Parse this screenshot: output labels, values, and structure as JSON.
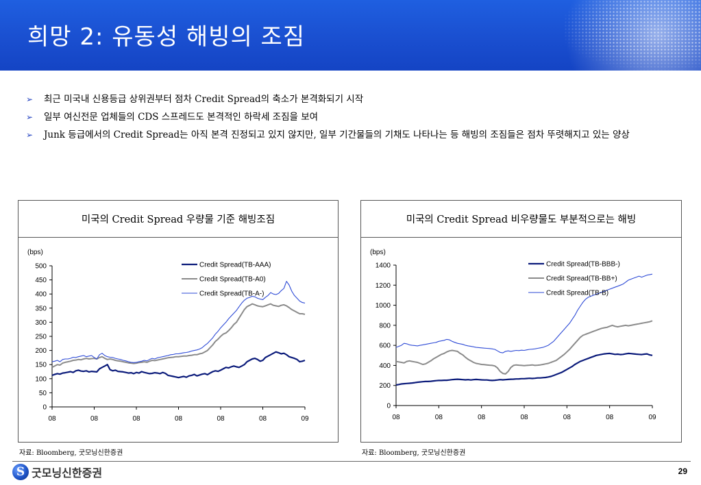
{
  "header": {
    "title": "희망 2: 유동성 해빙의 조짐"
  },
  "bullets": [
    "최근 미국내 신용등급 상위권부터 점차 Credit Spread의 축소가 본격화되기 시작",
    "일부 여신전문 업체들의 CDS 스프레드도 본격적인 하락세 조짐을 보여",
    "Junk 등급에서의 Credit Spread는 아직 본격 진정되고 있지 않지만, 일부 기간물들의 기채도 나타나는 등 해빙의 조짐들은 점차 뚜렷해지고 있는 양상"
  ],
  "bullet_marker": "➢",
  "panels": {
    "left": {
      "title": "미국의 Credit Spread 우량물 기준 해빙조짐",
      "source": "자료: Bloomberg, 굿모닝신한증권"
    },
    "right": {
      "title": "미국의 Credit Spread 비우량물도 부분적으로는 해빙",
      "source": "자료: Bloomberg, 굿모닝신한증권"
    }
  },
  "footer": {
    "logo_mark": "S",
    "logo_name": "굿모닝신한증권",
    "page_number": "29"
  },
  "chart_data": [
    {
      "type": "line",
      "title": "미국의 Credit Spread 우량물 기준 해빙조짐",
      "ylabel": "(bps)",
      "ylim": [
        0,
        500
      ],
      "yticks": [
        0,
        50,
        100,
        150,
        200,
        250,
        300,
        350,
        400,
        450,
        500
      ],
      "xtick_labels": [
        "08",
        "08",
        "08",
        "08",
        "08",
        "08",
        "09"
      ],
      "x_domain": [
        0,
        96
      ],
      "x_tick_positions": [
        0,
        16,
        32,
        48,
        64,
        80,
        96
      ],
      "legend_position": "top-right",
      "series": [
        {
          "name": "Credit Spread(TB-AAA)",
          "color": "#0a1a7a",
          "width": 2.2,
          "dash": "",
          "values": [
            112,
            115,
            118,
            116,
            120,
            121,
            123,
            125,
            122,
            128,
            130,
            127,
            126,
            128,
            124,
            126,
            125,
            124,
            135,
            140,
            145,
            150,
            132,
            128,
            130,
            126,
            125,
            124,
            122,
            120,
            121,
            118,
            122,
            120,
            125,
            122,
            120,
            118,
            119,
            121,
            120,
            118,
            122,
            119,
            112,
            110,
            108,
            106,
            104,
            106,
            108,
            105,
            110,
            112,
            115,
            110,
            113,
            116,
            118,
            114,
            120,
            125,
            128,
            126,
            130,
            135,
            140,
            138,
            142,
            145,
            142,
            140,
            145,
            150,
            160,
            165,
            170,
            172,
            168,
            162,
            165,
            175,
            180,
            185,
            190,
            195,
            192,
            188,
            190,
            185,
            178,
            175,
            172,
            168,
            160,
            162,
            165
          ]
        },
        {
          "name": "Credit Spread(TB-A0)",
          "color": "#8a8a8a",
          "width": 2,
          "dash": "",
          "values": [
            140,
            145,
            150,
            148,
            155,
            158,
            160,
            162,
            165,
            166,
            168,
            167,
            170,
            172,
            170,
            171,
            172,
            170,
            175,
            178,
            172,
            168,
            170,
            168,
            165,
            163,
            162,
            160,
            158,
            156,
            155,
            154,
            155,
            157,
            158,
            160,
            158,
            162,
            165,
            164,
            166,
            168,
            170,
            172,
            174,
            175,
            176,
            178,
            178,
            179,
            180,
            180,
            182,
            183,
            185,
            185,
            188,
            190,
            195,
            200,
            210,
            220,
            232,
            240,
            250,
            258,
            262,
            270,
            280,
            292,
            300,
            315,
            330,
            345,
            355,
            360,
            365,
            362,
            358,
            356,
            355,
            358,
            362,
            365,
            360,
            358,
            356,
            360,
            362,
            358,
            352,
            345,
            340,
            335,
            330,
            330,
            328
          ]
        },
        {
          "name": "Credit Spread(TB-A-)",
          "color": "#2d4ad6",
          "width": 1.1,
          "dash": "",
          "values": [
            160,
            162,
            165,
            160,
            168,
            170,
            170,
            172,
            176,
            175,
            178,
            180,
            182,
            178,
            180,
            182,
            175,
            170,
            185,
            190,
            182,
            178,
            176,
            175,
            172,
            170,
            168,
            165,
            163,
            160,
            158,
            157,
            158,
            160,
            162,
            165,
            163,
            168,
            172,
            170,
            174,
            176,
            178,
            180,
            182,
            185,
            186,
            188,
            188,
            190,
            192,
            193,
            195,
            198,
            200,
            202,
            205,
            210,
            218,
            225,
            235,
            245,
            258,
            268,
            280,
            290,
            300,
            312,
            322,
            332,
            342,
            355,
            368,
            378,
            385,
            388,
            392,
            390,
            385,
            382,
            380,
            388,
            395,
            405,
            400,
            398,
            402,
            412,
            420,
            445,
            432,
            410,
            395,
            385,
            375,
            370,
            368
          ]
        }
      ]
    },
    {
      "type": "line",
      "title": "미국의 Credit Spread 비우량물도 부분적으로는 해빙",
      "ylabel": "(bps)",
      "ylim": [
        0,
        1400
      ],
      "yticks": [
        0,
        200,
        400,
        600,
        800,
        1000,
        1200,
        1400
      ],
      "xtick_labels": [
        "08",
        "08",
        "08",
        "08",
        "08",
        "08",
        "09"
      ],
      "x_domain": [
        0,
        96
      ],
      "x_tick_positions": [
        0,
        16,
        32,
        48,
        64,
        80,
        96
      ],
      "legend_position": "top-right",
      "series": [
        {
          "name": "Credit Spread(TB-BBB-)",
          "color": "#0a1a7a",
          "width": 2.2,
          "dash": "",
          "values": [
            205,
            210,
            215,
            218,
            220,
            222,
            225,
            228,
            232,
            235,
            238,
            240,
            240,
            242,
            245,
            248,
            250,
            250,
            252,
            252,
            255,
            258,
            260,
            262,
            260,
            258,
            256,
            258,
            255,
            258,
            260,
            258,
            256,
            255,
            255,
            252,
            250,
            252,
            255,
            258,
            256,
            258,
            260,
            262,
            263,
            265,
            266,
            268,
            268,
            270,
            272,
            270,
            272,
            275,
            275,
            278,
            280,
            285,
            290,
            300,
            310,
            320,
            330,
            345,
            360,
            375,
            390,
            410,
            425,
            440,
            450,
            460,
            470,
            480,
            490,
            500,
            505,
            510,
            515,
            518,
            520,
            515,
            510,
            512,
            508,
            510,
            515,
            520,
            518,
            515,
            512,
            510,
            508,
            512,
            515,
            505,
            500
          ]
        },
        {
          "name": "Credit Spread(TB-BB+)",
          "color": "#8a8a8a",
          "width": 2,
          "dash": "",
          "values": [
            440,
            435,
            430,
            425,
            440,
            445,
            440,
            435,
            430,
            420,
            410,
            415,
            430,
            445,
            465,
            480,
            495,
            510,
            520,
            535,
            545,
            550,
            545,
            540,
            520,
            505,
            480,
            460,
            445,
            430,
            420,
            415,
            410,
            408,
            405,
            402,
            400,
            395,
            375,
            340,
            320,
            315,
            340,
            380,
            400,
            405,
            402,
            400,
            398,
            400,
            402,
            405,
            400,
            402,
            405,
            410,
            415,
            420,
            430,
            440,
            450,
            470,
            490,
            510,
            535,
            560,
            590,
            620,
            650,
            680,
            700,
            710,
            720,
            730,
            740,
            750,
            760,
            770,
            775,
            780,
            790,
            800,
            790,
            785,
            790,
            795,
            800,
            795,
            800,
            805,
            810,
            815,
            820,
            825,
            830,
            835,
            845
          ]
        },
        {
          "name": "Credit Spread(TB-B)",
          "color": "#2d4ad6",
          "width": 1.1,
          "dash": "",
          "values": [
            580,
            590,
            600,
            620,
            615,
            605,
            600,
            598,
            595,
            600,
            605,
            610,
            615,
            620,
            625,
            630,
            640,
            645,
            650,
            660,
            655,
            640,
            630,
            620,
            615,
            610,
            600,
            595,
            590,
            585,
            580,
            578,
            575,
            572,
            570,
            568,
            565,
            560,
            545,
            530,
            525,
            540,
            545,
            540,
            545,
            550,
            548,
            552,
            550,
            555,
            560,
            562,
            565,
            570,
            575,
            580,
            590,
            600,
            620,
            640,
            670,
            700,
            730,
            760,
            790,
            820,
            860,
            900,
            950,
            990,
            1030,
            1060,
            1080,
            1090,
            1100,
            1110,
            1120,
            1130,
            1140,
            1150,
            1160,
            1170,
            1180,
            1190,
            1200,
            1210,
            1230,
            1250,
            1260,
            1270,
            1280,
            1290,
            1280,
            1290,
            1300,
            1305,
            1310
          ]
        }
      ]
    }
  ]
}
